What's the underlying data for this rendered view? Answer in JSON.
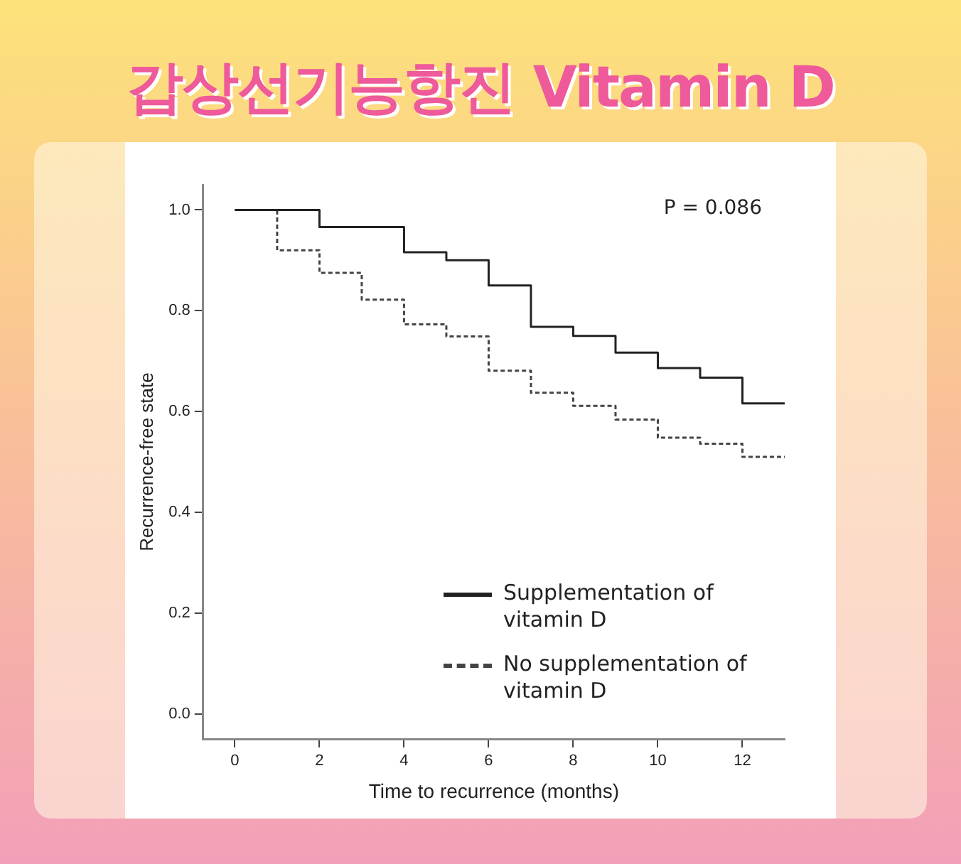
{
  "chart_data": {
    "type": "step",
    "title": "갑상선기능항진 Vitamin D",
    "xlabel": "Time to recurrence (months)",
    "ylabel": "Recurrence-free state",
    "series": [
      {
        "name": "Supplementation of vitamin D",
        "color": "#222222",
        "line_style": "solid",
        "x": [
          0,
          2,
          4,
          5,
          6,
          7,
          8,
          9,
          10,
          11,
          12,
          13
        ],
        "values": [
          1.0,
          0.966,
          0.916,
          0.9,
          0.85,
          0.768,
          0.75,
          0.717,
          0.686,
          0.667,
          0.616,
          0.616
        ]
      },
      {
        "name": "No supplementation of vitamin D",
        "color": "#444444",
        "line_style": "dashed",
        "x": [
          0,
          1,
          2,
          3,
          4,
          5,
          6,
          7,
          8,
          9,
          10,
          11,
          12,
          13
        ],
        "values": [
          1.0,
          0.92,
          0.875,
          0.822,
          0.773,
          0.749,
          0.681,
          0.637,
          0.611,
          0.584,
          0.548,
          0.536,
          0.51,
          0.51
        ]
      }
    ],
    "xlim": [
      -0.75,
      13
    ],
    "xticks": [
      0,
      2,
      4,
      6,
      8,
      10,
      12
    ],
    "ylim": [
      -0.05,
      1.05
    ],
    "yticks": [
      {
        "value": 0,
        "label": "0.0"
      },
      0.2,
      0.4,
      0.6,
      0.8,
      {
        "value": 1,
        "label": "1.0"
      }
    ],
    "grid": false,
    "legend": "bottom right",
    "marker": "none",
    "annotations": [
      "P = 0.086"
    ]
  }
}
